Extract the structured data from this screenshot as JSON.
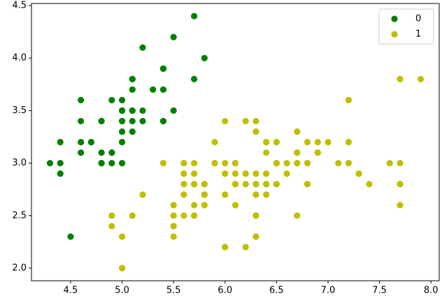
{
  "chart_data": {
    "type": "scatter",
    "xlim": [
      4.12,
      8.08
    ],
    "ylim": [
      1.88,
      4.52
    ],
    "xticks": [
      4.5,
      {
        "value": 5,
        "label": "5.0"
      },
      5.5,
      {
        "value": 6,
        "label": "6.0"
      },
      6.5,
      {
        "value": 7,
        "label": "7.0"
      },
      7.5,
      {
        "value": 8,
        "label": "8.0"
      }
    ],
    "yticks": [
      {
        "value": 2,
        "label": "2.0"
      },
      2.5,
      {
        "value": 3,
        "label": "3.0"
      },
      3.5,
      {
        "value": 4,
        "label": "4.0"
      },
      4.5
    ],
    "legend": "upper right",
    "series": [
      {
        "name": "0",
        "color": "#008000",
        "x": [
          5.1,
          4.9,
          4.7,
          4.6,
          5.0,
          5.4,
          4.6,
          5.0,
          4.4,
          4.9,
          5.4,
          4.8,
          4.8,
          4.3,
          5.8,
          5.7,
          5.4,
          5.1,
          5.7,
          5.1,
          5.4,
          5.1,
          4.6,
          5.1,
          4.8,
          5.0,
          5.0,
          5.2,
          5.2,
          4.7,
          4.8,
          5.4,
          5.2,
          5.5,
          4.9,
          5.0,
          5.5,
          4.9,
          4.4,
          5.1,
          5.0,
          4.5,
          4.4,
          5.0,
          5.1,
          4.8,
          5.1,
          4.6,
          5.3,
          5.0
        ],
        "y": [
          3.5,
          3.0,
          3.2,
          3.1,
          3.6,
          3.9,
          3.4,
          3.4,
          2.9,
          3.1,
          3.7,
          3.4,
          3.0,
          3.0,
          4.0,
          4.4,
          3.9,
          3.5,
          3.8,
          3.8,
          3.4,
          3.7,
          3.6,
          3.3,
          3.4,
          3.0,
          3.4,
          3.5,
          3.4,
          3.2,
          3.1,
          3.4,
          4.1,
          4.2,
          3.1,
          3.2,
          3.5,
          3.6,
          3.0,
          3.4,
          3.5,
          2.3,
          3.2,
          3.5,
          3.8,
          3.0,
          3.8,
          3.2,
          3.7,
          3.3
        ]
      },
      {
        "name": "1",
        "color": "#bfbf00",
        "x": [
          7.0,
          6.4,
          6.9,
          5.5,
          6.5,
          5.7,
          6.3,
          4.9,
          6.6,
          5.2,
          5.0,
          5.9,
          6.0,
          6.1,
          5.6,
          6.7,
          5.6,
          5.8,
          6.2,
          5.6,
          5.9,
          6.1,
          6.3,
          6.1,
          6.4,
          6.6,
          6.8,
          6.7,
          6.0,
          5.7,
          5.5,
          5.5,
          5.8,
          6.0,
          5.4,
          6.0,
          6.7,
          6.3,
          5.6,
          5.5,
          5.5,
          6.1,
          5.8,
          5.0,
          5.6,
          5.7,
          5.7,
          6.2,
          5.1,
          5.7,
          6.3,
          5.8,
          7.1,
          6.3,
          6.5,
          7.6,
          4.9,
          7.3,
          6.7,
          7.2,
          6.5,
          6.4,
          6.8,
          5.7,
          5.8,
          6.4,
          6.5,
          7.7,
          7.7,
          6.0,
          6.9,
          5.6,
          7.7,
          6.3,
          6.7,
          7.2,
          6.2,
          6.1,
          6.4,
          7.2,
          7.4,
          7.9,
          6.4,
          6.3,
          6.1,
          7.7,
          6.3,
          6.4,
          6.0,
          6.9,
          6.7,
          6.9,
          5.8,
          6.8,
          6.7,
          6.7,
          6.3,
          6.5,
          6.2,
          5.9
        ],
        "y": [
          3.2,
          3.2,
          3.1,
          2.3,
          2.8,
          2.8,
          3.3,
          2.4,
          2.9,
          2.7,
          2.0,
          3.0,
          2.2,
          2.9,
          2.9,
          3.1,
          3.0,
          2.7,
          2.2,
          2.5,
          3.2,
          2.8,
          2.5,
          2.8,
          2.9,
          3.0,
          2.8,
          3.0,
          2.9,
          2.6,
          2.4,
          2.4,
          2.7,
          2.7,
          3.0,
          3.4,
          3.1,
          2.3,
          3.0,
          2.5,
          2.6,
          3.0,
          2.6,
          2.3,
          2.7,
          3.0,
          2.9,
          2.9,
          2.5,
          2.8,
          3.3,
          2.7,
          3.0,
          2.9,
          3.0,
          3.0,
          2.5,
          2.9,
          2.5,
          3.6,
          3.2,
          2.7,
          3.0,
          2.5,
          2.8,
          3.2,
          3.0,
          3.8,
          2.6,
          2.2,
          3.2,
          2.8,
          2.8,
          2.7,
          3.3,
          3.2,
          2.8,
          3.0,
          2.8,
          3.0,
          2.8,
          3.8,
          2.8,
          2.8,
          2.6,
          3.0,
          3.4,
          3.1,
          3.0,
          3.1,
          3.1,
          3.1,
          2.7,
          3.2,
          3.3,
          3.0,
          2.5,
          3.0,
          3.4,
          3.0
        ]
      }
    ]
  }
}
